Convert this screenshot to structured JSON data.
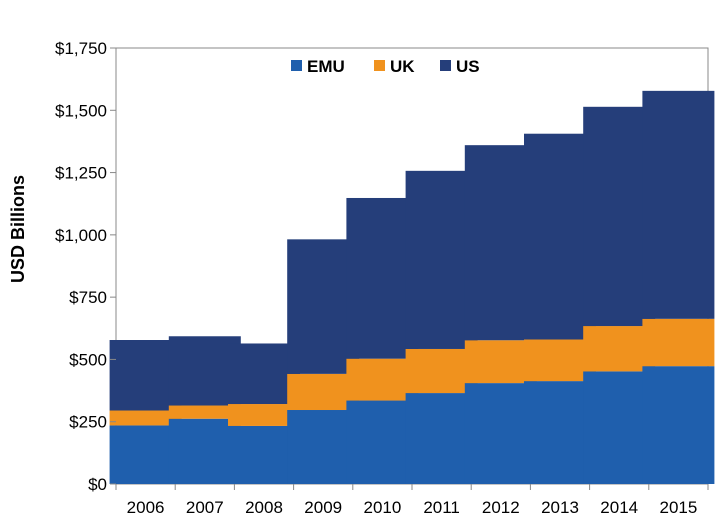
{
  "chart_data": {
    "type": "bar",
    "stacked": true,
    "categories": [
      "2006",
      "2007",
      "2008",
      "2009",
      "2010",
      "2011",
      "2012",
      "2013",
      "2014",
      "2015"
    ],
    "series": [
      {
        "name": "EMU",
        "color": "#1f5fad",
        "values": [
          235,
          262,
          233,
          297,
          335,
          365,
          405,
          413,
          452,
          473
        ]
      },
      {
        "name": "UK",
        "color": "#f0921e",
        "values": [
          60,
          53,
          88,
          145,
          168,
          177,
          172,
          167,
          182,
          190
        ]
      },
      {
        "name": "US",
        "color": "#253e7a",
        "values": [
          283,
          278,
          243,
          540,
          645,
          715,
          783,
          826,
          880,
          915
        ]
      }
    ],
    "title": "",
    "xlabel": "",
    "ylabel": "USD Billions",
    "ylim": [
      0,
      1750
    ],
    "yticks": [
      0,
      250,
      500,
      750,
      1000,
      1250,
      1500,
      1750
    ],
    "ytick_labels": [
      "$0",
      "$250",
      "$500",
      "$750",
      "$1,000",
      "$1,250",
      "$1,500",
      "$1,750"
    ],
    "grid": false,
    "legend_position": "top-center"
  }
}
